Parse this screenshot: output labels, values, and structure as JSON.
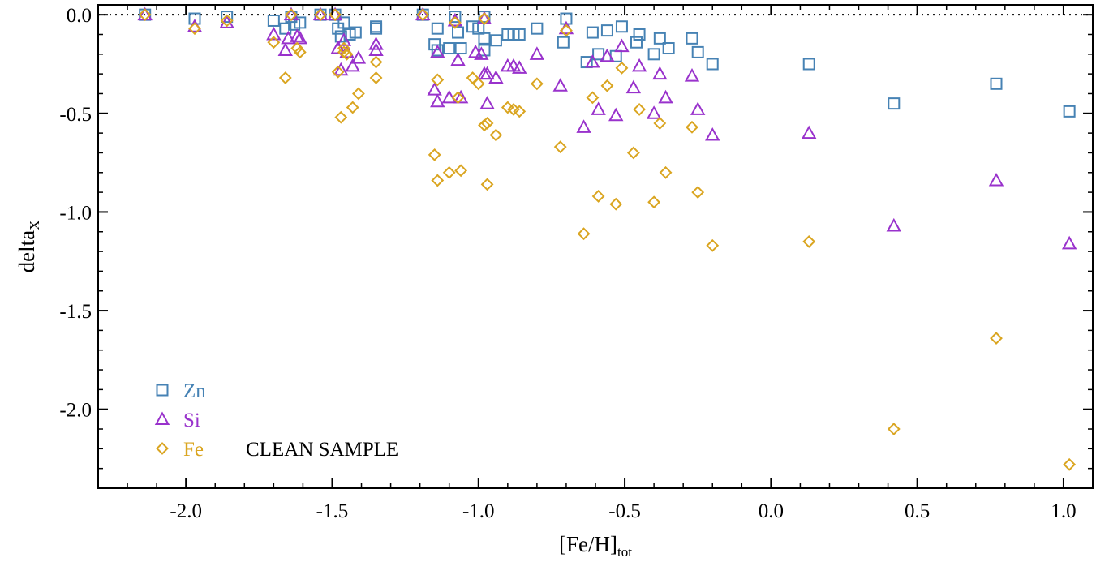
{
  "chart_data": {
    "type": "scatter",
    "xlabel": "[Fe/H]",
    "xlabel_sub": "tot",
    "ylabel": "delta",
    "ylabel_sub": "X",
    "xlim": [
      -2.3,
      1.1
    ],
    "ylim": [
      -2.4,
      0.05
    ],
    "x_ticks": [
      -2.0,
      -1.5,
      -1.0,
      -0.5,
      0.0,
      0.5,
      1.0
    ],
    "x_tick_labels": [
      "-2.0",
      "-1.5",
      "-1.0",
      "-0.5",
      "0.0",
      "0.5",
      "1.0"
    ],
    "y_ticks": [
      0.0,
      -0.5,
      -1.0,
      -1.5,
      -2.0
    ],
    "y_tick_labels": [
      "0.0",
      "-0.5",
      "-1.0",
      "-1.5",
      "-2.0"
    ],
    "reference_line": {
      "y": 0.0,
      "style": "dotted"
    },
    "annotation": "CLEAN SAMPLE",
    "legend_position": "bottom-left",
    "series": [
      {
        "name": "Zn",
        "marker": "square",
        "color": "#4682b4",
        "points": [
          [
            -2.14,
            0.0
          ],
          [
            -1.97,
            -0.02
          ],
          [
            -1.86,
            -0.01
          ],
          [
            -1.7,
            -0.03
          ],
          [
            -1.66,
            -0.07
          ],
          [
            -1.64,
            -0.01
          ],
          [
            -1.63,
            -0.05
          ],
          [
            -1.61,
            -0.04
          ],
          [
            -1.54,
            0.0
          ],
          [
            -1.49,
            0.0
          ],
          [
            -1.48,
            -0.07
          ],
          [
            -1.46,
            -0.04
          ],
          [
            -1.47,
            -0.11
          ],
          [
            -1.44,
            -0.1
          ],
          [
            -1.42,
            -0.09
          ],
          [
            -1.35,
            -0.06
          ],
          [
            -1.35,
            -0.07
          ],
          [
            -1.19,
            0.0
          ],
          [
            -1.15,
            -0.15
          ],
          [
            -1.14,
            -0.07
          ],
          [
            -1.14,
            -0.18
          ],
          [
            -1.1,
            -0.17
          ],
          [
            -1.08,
            -0.01
          ],
          [
            -1.07,
            -0.09
          ],
          [
            -1.06,
            -0.17
          ],
          [
            -1.02,
            -0.06
          ],
          [
            -1.0,
            -0.07
          ],
          [
            -0.98,
            -0.12
          ],
          [
            -0.98,
            -0.18
          ],
          [
            -0.98,
            -0.01
          ],
          [
            -0.94,
            -0.13
          ],
          [
            -0.9,
            -0.1
          ],
          [
            -0.88,
            -0.1
          ],
          [
            -0.86,
            -0.1
          ],
          [
            -0.8,
            -0.07
          ],
          [
            -0.71,
            -0.14
          ],
          [
            -0.7,
            -0.02
          ],
          [
            -0.63,
            -0.24
          ],
          [
            -0.61,
            -0.09
          ],
          [
            -0.59,
            -0.2
          ],
          [
            -0.56,
            -0.08
          ],
          [
            -0.53,
            -0.21
          ],
          [
            -0.51,
            -0.06
          ],
          [
            -0.46,
            -0.14
          ],
          [
            -0.45,
            -0.1
          ],
          [
            -0.4,
            -0.2
          ],
          [
            -0.38,
            -0.12
          ],
          [
            -0.35,
            -0.17
          ],
          [
            -0.27,
            -0.12
          ],
          [
            -0.25,
            -0.19
          ],
          [
            -0.2,
            -0.25
          ],
          [
            0.13,
            -0.25
          ],
          [
            0.42,
            -0.45
          ],
          [
            0.77,
            -0.35
          ],
          [
            1.02,
            -0.49
          ]
        ]
      },
      {
        "name": "Si",
        "marker": "triangle",
        "color": "#9932cc",
        "points": [
          [
            -2.14,
            0.0
          ],
          [
            -1.97,
            -0.06
          ],
          [
            -1.86,
            -0.04
          ],
          [
            -1.7,
            -0.1
          ],
          [
            -1.66,
            -0.18
          ],
          [
            -1.65,
            -0.12
          ],
          [
            -1.64,
            0.0
          ],
          [
            -1.62,
            -0.11
          ],
          [
            -1.61,
            -0.12
          ],
          [
            -1.54,
            0.0
          ],
          [
            -1.49,
            0.0
          ],
          [
            -1.48,
            -0.17
          ],
          [
            -1.47,
            -0.28
          ],
          [
            -1.46,
            -0.13
          ],
          [
            -1.45,
            -0.19
          ],
          [
            -1.43,
            -0.26
          ],
          [
            -1.41,
            -0.22
          ],
          [
            -1.35,
            -0.18
          ],
          [
            -1.35,
            -0.15
          ],
          [
            -1.19,
            0.0
          ],
          [
            -1.15,
            -0.38
          ],
          [
            -1.14,
            -0.44
          ],
          [
            -1.14,
            -0.19
          ],
          [
            -1.1,
            -0.42
          ],
          [
            -1.08,
            -0.03
          ],
          [
            -1.07,
            -0.23
          ],
          [
            -1.06,
            -0.42
          ],
          [
            -1.01,
            -0.19
          ],
          [
            -0.99,
            -0.2
          ],
          [
            -0.98,
            -0.3
          ],
          [
            -0.97,
            -0.3
          ],
          [
            -0.97,
            -0.45
          ],
          [
            -0.98,
            -0.02
          ],
          [
            -0.94,
            -0.32
          ],
          [
            -0.9,
            -0.26
          ],
          [
            -0.88,
            -0.26
          ],
          [
            -0.86,
            -0.27
          ],
          [
            -0.8,
            -0.2
          ],
          [
            -0.72,
            -0.36
          ],
          [
            -0.7,
            -0.07
          ],
          [
            -0.64,
            -0.57
          ],
          [
            -0.61,
            -0.24
          ],
          [
            -0.59,
            -0.48
          ],
          [
            -0.56,
            -0.21
          ],
          [
            -0.53,
            -0.51
          ],
          [
            -0.51,
            -0.16
          ],
          [
            -0.47,
            -0.37
          ],
          [
            -0.45,
            -0.26
          ],
          [
            -0.4,
            -0.5
          ],
          [
            -0.38,
            -0.3
          ],
          [
            -0.36,
            -0.42
          ],
          [
            -0.27,
            -0.31
          ],
          [
            -0.25,
            -0.48
          ],
          [
            -0.2,
            -0.61
          ],
          [
            0.13,
            -0.6
          ],
          [
            0.42,
            -1.07
          ],
          [
            0.77,
            -0.84
          ],
          [
            1.02,
            -1.16
          ]
        ]
      },
      {
        "name": "Fe",
        "marker": "diamond",
        "color": "#daa520",
        "points": [
          [
            -2.14,
            0.0
          ],
          [
            -1.97,
            -0.07
          ],
          [
            -1.86,
            -0.03
          ],
          [
            -1.7,
            -0.14
          ],
          [
            -1.66,
            -0.32
          ],
          [
            -1.64,
            0.0
          ],
          [
            -1.62,
            -0.17
          ],
          [
            -1.61,
            -0.19
          ],
          [
            -1.54,
            0.0
          ],
          [
            -1.49,
            0.0
          ],
          [
            -1.48,
            -0.29
          ],
          [
            -1.47,
            -0.52
          ],
          [
            -1.46,
            -0.17
          ],
          [
            -1.46,
            -0.19
          ],
          [
            -1.45,
            -0.2
          ],
          [
            -1.43,
            -0.47
          ],
          [
            -1.41,
            -0.4
          ],
          [
            -1.35,
            -0.24
          ],
          [
            -1.35,
            -0.32
          ],
          [
            -1.19,
            0.0
          ],
          [
            -1.15,
            -0.71
          ],
          [
            -1.14,
            -0.84
          ],
          [
            -1.14,
            -0.33
          ],
          [
            -1.1,
            -0.8
          ],
          [
            -1.08,
            -0.04
          ],
          [
            -1.07,
            -0.42
          ],
          [
            -1.06,
            -0.79
          ],
          [
            -1.02,
            -0.32
          ],
          [
            -1.0,
            -0.35
          ],
          [
            -0.98,
            -0.56
          ],
          [
            -0.97,
            -0.55
          ],
          [
            -0.97,
            -0.86
          ],
          [
            -0.98,
            -0.02
          ],
          [
            -0.94,
            -0.61
          ],
          [
            -0.9,
            -0.47
          ],
          [
            -0.88,
            -0.48
          ],
          [
            -0.86,
            -0.49
          ],
          [
            -0.8,
            -0.35
          ],
          [
            -0.72,
            -0.67
          ],
          [
            -0.7,
            -0.08
          ],
          [
            -0.64,
            -1.11
          ],
          [
            -0.61,
            -0.42
          ],
          [
            -0.59,
            -0.92
          ],
          [
            -0.56,
            -0.36
          ],
          [
            -0.53,
            -0.96
          ],
          [
            -0.51,
            -0.27
          ],
          [
            -0.47,
            -0.7
          ],
          [
            -0.45,
            -0.48
          ],
          [
            -0.4,
            -0.95
          ],
          [
            -0.38,
            -0.55
          ],
          [
            -0.36,
            -0.8
          ],
          [
            -0.27,
            -0.57
          ],
          [
            -0.25,
            -0.9
          ],
          [
            -0.2,
            -1.17
          ],
          [
            0.13,
            -1.15
          ],
          [
            0.42,
            -2.1
          ],
          [
            0.77,
            -1.64
          ],
          [
            1.02,
            -2.28
          ]
        ]
      }
    ]
  }
}
